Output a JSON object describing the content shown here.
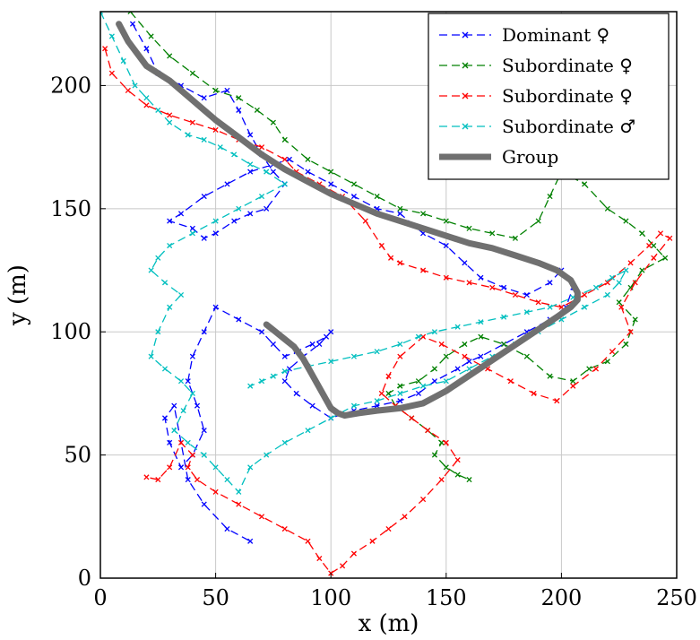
{
  "chart_data": {
    "type": "line",
    "title": "",
    "xlabel": "x (m)",
    "ylabel": "y (m)",
    "xlim": [
      0,
      250
    ],
    "ylim": [
      0,
      230
    ],
    "xticks": [
      0,
      50,
      100,
      150,
      200,
      250
    ],
    "yticks": [
      0,
      50,
      100,
      150,
      200
    ],
    "grid": true,
    "legend_position": "top-right",
    "series": [
      {
        "name": "Dominant ♀",
        "color": "#0000ff",
        "style": "dashed-x",
        "x": [
          14,
          20,
          25,
          35,
          45,
          55,
          60,
          65,
          70,
          75,
          80,
          72,
          65,
          58,
          50,
          45,
          40,
          30,
          35,
          45,
          55,
          65,
          75,
          82,
          90,
          100,
          110,
          120,
          130,
          140,
          150,
          158,
          165,
          175,
          185,
          195,
          200,
          205,
          202,
          195,
          185,
          175,
          165,
          160,
          155,
          145,
          138,
          130,
          120,
          110,
          100,
          92,
          85,
          80,
          82,
          88,
          95,
          100,
          98,
          92,
          85,
          80,
          75,
          70,
          60,
          50,
          45,
          40,
          38,
          42,
          45,
          40,
          35,
          30,
          28,
          32,
          38,
          45,
          55,
          65
        ],
        "y": [
          225,
          215,
          205,
          200,
          195,
          198,
          190,
          180,
          172,
          165,
          160,
          150,
          148,
          145,
          140,
          138,
          142,
          145,
          148,
          155,
          160,
          165,
          168,
          170,
          165,
          160,
          155,
          150,
          148,
          140,
          135,
          128,
          122,
          118,
          115,
          120,
          125,
          118,
          110,
          105,
          100,
          95,
          90,
          88,
          85,
          80,
          75,
          72,
          70,
          68,
          65,
          70,
          75,
          80,
          85,
          90,
          95,
          100,
          98,
          95,
          92,
          90,
          95,
          100,
          105,
          110,
          100,
          90,
          80,
          70,
          60,
          50,
          45,
          55,
          65,
          70,
          40,
          30,
          20,
          15
        ]
      },
      {
        "name": "Subordinate ♀",
        "color": "#008000",
        "style": "dashed-x",
        "x": [
          13,
          22,
          30,
          40,
          50,
          60,
          68,
          75,
          80,
          90,
          100,
          110,
          120,
          130,
          140,
          150,
          160,
          170,
          180,
          190,
          195,
          200,
          210,
          220,
          228,
          235,
          240,
          245,
          235,
          230,
          225,
          232,
          228,
          220,
          212,
          205,
          195,
          185,
          175,
          165,
          158,
          150,
          145,
          138,
          130,
          125,
          128,
          135,
          142,
          148,
          145,
          150,
          155,
          160
        ],
        "y": [
          230,
          220,
          212,
          205,
          198,
          195,
          190,
          185,
          178,
          170,
          165,
          160,
          155,
          150,
          148,
          145,
          142,
          140,
          138,
          145,
          155,
          165,
          160,
          150,
          145,
          140,
          135,
          130,
          125,
          118,
          112,
          105,
          95,
          88,
          85,
          80,
          82,
          90,
          95,
          98,
          95,
          90,
          85,
          80,
          78,
          75,
          70,
          65,
          60,
          55,
          50,
          45,
          42,
          40
        ]
      },
      {
        "name": "Subordinate ♀",
        "color": "#ff0000",
        "style": "dashed-x",
        "x": [
          2,
          5,
          12,
          20,
          30,
          40,
          50,
          60,
          70,
          80,
          85,
          95,
          105,
          115,
          122,
          126,
          130,
          140,
          150,
          160,
          170,
          180,
          190,
          200,
          210,
          220,
          230,
          238,
          243,
          247,
          240,
          232,
          226,
          230,
          222,
          215,
          205,
          198,
          188,
          178,
          168,
          158,
          148,
          140,
          130,
          125,
          122,
          128,
          135,
          142,
          150,
          155,
          148,
          140,
          132,
          125,
          118,
          110,
          105,
          100,
          95,
          90,
          80,
          70,
          60,
          50,
          42,
          38,
          40,
          35,
          30,
          25,
          20
        ],
        "y": [
          215,
          205,
          198,
          192,
          188,
          185,
          182,
          178,
          175,
          170,
          165,
          160,
          155,
          145,
          135,
          130,
          128,
          125,
          122,
          120,
          118,
          115,
          112,
          110,
          115,
          120,
          128,
          135,
          140,
          138,
          130,
          120,
          110,
          100,
          92,
          85,
          78,
          72,
          75,
          80,
          85,
          90,
          95,
          98,
          90,
          82,
          75,
          70,
          65,
          60,
          55,
          48,
          40,
          32,
          25,
          20,
          15,
          10,
          5,
          2,
          8,
          15,
          20,
          25,
          30,
          35,
          40,
          45,
          50,
          55,
          45,
          40,
          41
        ]
      },
      {
        "name": "Subordinate ♂",
        "color": "#00bfbf",
        "style": "dashed-x",
        "x": [
          0,
          5,
          10,
          15,
          20,
          25,
          30,
          38,
          45,
          52,
          58,
          65,
          72,
          80,
          70,
          60,
          50,
          40,
          30,
          25,
          22,
          28,
          35,
          30,
          25,
          22,
          28,
          35,
          40,
          36,
          32,
          38,
          45,
          50,
          55,
          60,
          65,
          72,
          80,
          90,
          100,
          110,
          120,
          130,
          140,
          150,
          160,
          170,
          180,
          190,
          200,
          210,
          220,
          225,
          228,
          222,
          215,
          205,
          195,
          185,
          175,
          165,
          155,
          145,
          138,
          130,
          120,
          110,
          100,
          90,
          80,
          75,
          70,
          65
        ],
        "y": [
          230,
          220,
          210,
          200,
          195,
          190,
          185,
          180,
          178,
          175,
          172,
          168,
          165,
          160,
          155,
          150,
          145,
          140,
          135,
          130,
          125,
          120,
          115,
          110,
          100,
          90,
          85,
          80,
          75,
          68,
          60,
          55,
          50,
          45,
          40,
          35,
          45,
          50,
          55,
          60,
          65,
          70,
          72,
          75,
          78,
          80,
          85,
          90,
          95,
          100,
          105,
          110,
          115,
          120,
          125,
          122,
          118,
          114,
          110,
          108,
          106,
          104,
          102,
          100,
          98,
          95,
          92,
          90,
          88,
          86,
          84,
          82,
          80,
          78
        ]
      },
      {
        "name": "Group",
        "color": "#707070",
        "style": "thick-solid",
        "x": [
          8,
          12,
          20,
          30,
          40,
          50,
          60,
          70,
          80,
          90,
          100,
          110,
          120,
          130,
          140,
          150,
          160,
          170,
          180,
          190,
          198,
          204,
          207,
          207,
          204,
          198,
          190,
          182,
          174,
          166,
          158,
          150,
          140,
          130,
          120,
          112,
          106,
          103,
          100,
          97,
          94,
          91,
          88,
          84,
          80,
          76,
          72
        ],
        "y": [
          225,
          218,
          208,
          202,
          194,
          186,
          179,
          172,
          166,
          161,
          156,
          152,
          148,
          145,
          142,
          139,
          136,
          134,
          131,
          128,
          125,
          121,
          116,
          113,
          110,
          106,
          101,
          96,
          91,
          86,
          81,
          76,
          71,
          69,
          68,
          67,
          66,
          67,
          69,
          74,
          79,
          84,
          89,
          94,
          97,
          100,
          103
        ]
      }
    ]
  }
}
